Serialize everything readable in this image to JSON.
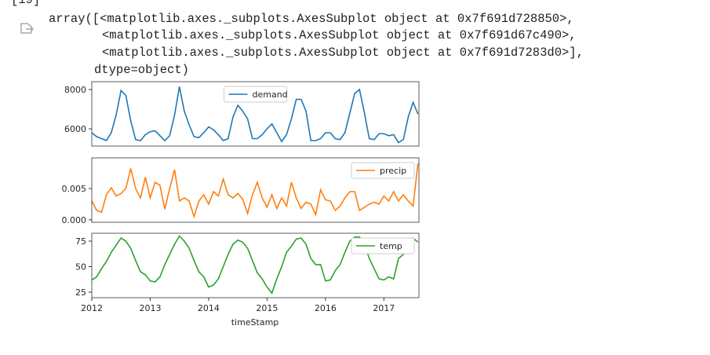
{
  "cell": {
    "prompt": "[19]",
    "output_lines": [
      "array([<matplotlib.axes._subplots.AxesSubplot object at 0x7f691d728850>,",
      "<matplotlib.axes._subplots.AxesSubplot object at 0x7f691d67c490>,",
      "<matplotlib.axes._subplots.AxesSubplot object at 0x7f691d7283d0>],",
      "dtype=object)"
    ]
  },
  "chart_data": {
    "type": "line",
    "xlabel": "timeStamp",
    "x": [
      2012,
      2012.083,
      2012.167,
      2012.25,
      2012.333,
      2012.417,
      2012.5,
      2012.583,
      2012.667,
      2012.75,
      2012.833,
      2012.917,
      2013,
      2013.083,
      2013.167,
      2013.25,
      2013.333,
      2013.417,
      2013.5,
      2013.583,
      2013.667,
      2013.75,
      2013.833,
      2013.917,
      2014,
      2014.083,
      2014.167,
      2014.25,
      2014.333,
      2014.417,
      2014.5,
      2014.583,
      2014.667,
      2014.75,
      2014.833,
      2014.917,
      2015,
      2015.083,
      2015.167,
      2015.25,
      2015.333,
      2015.417,
      2015.5,
      2015.583,
      2015.667,
      2015.75,
      2015.833,
      2015.917,
      2016,
      2016.083,
      2016.167,
      2016.25,
      2016.333,
      2016.417,
      2016.5,
      2016.583,
      2016.667,
      2016.75,
      2016.833,
      2016.917,
      2017,
      2017.083,
      2017.167,
      2017.25,
      2017.333,
      2017.417,
      2017.5,
      2017.583
    ],
    "xlim": [
      2012,
      2017.6
    ],
    "xticks": [
      2012,
      2013,
      2014,
      2015,
      2016,
      2017
    ],
    "series": [
      {
        "name": "demand",
        "color": "#1f77b4",
        "legend": "upper center",
        "ylim": [
          5120,
          8400
        ],
        "yticks": [
          6000,
          8000
        ],
        "values": [
          5800,
          5600,
          5500,
          5400,
          5800,
          6700,
          7950,
          7700,
          6400,
          5450,
          5400,
          5700,
          5850,
          5900,
          5650,
          5400,
          5650,
          6700,
          8150,
          6900,
          6200,
          5600,
          5550,
          5800,
          6100,
          5950,
          5700,
          5400,
          5500,
          6600,
          7200,
          6900,
          6500,
          5500,
          5500,
          5700,
          6000,
          6250,
          5800,
          5350,
          5700,
          6500,
          7500,
          7500,
          6900,
          5400,
          5400,
          5500,
          5800,
          5800,
          5500,
          5450,
          5800,
          6800,
          7800,
          8000,
          6800,
          5500,
          5450,
          5750,
          5750,
          5650,
          5700,
          5300,
          5450,
          6600,
          7350,
          6750
        ]
      },
      {
        "name": "precip",
        "color": "#ff7f0e",
        "legend": "upper right",
        "ylim": [
          -0.0004,
          0.0099
        ],
        "yticks": [
          {
            "value": 0,
            "label": "0.000"
          },
          {
            "value": 0.005,
            "label": "0.005"
          }
        ],
        "values": [
          0.003,
          0.0015,
          0.0012,
          0.004,
          0.0051,
          0.0038,
          0.0042,
          0.005,
          0.0082,
          0.005,
          0.0035,
          0.0068,
          0.0035,
          0.006,
          0.0055,
          0.0017,
          0.005,
          0.008,
          0.003,
          0.0035,
          0.003,
          0.0005,
          0.003,
          0.004,
          0.0025,
          0.0045,
          0.0038,
          0.0065,
          0.004,
          0.0035,
          0.0042,
          0.0033,
          0.001,
          0.004,
          0.006,
          0.0035,
          0.002,
          0.004,
          0.0018,
          0.0035,
          0.0022,
          0.006,
          0.0035,
          0.0018,
          0.0028,
          0.0025,
          0.0008,
          0.0048,
          0.0032,
          0.003,
          0.0015,
          0.0022,
          0.0035,
          0.0045,
          0.0045,
          0.0015,
          0.002,
          0.0025,
          0.0028,
          0.0025,
          0.0038,
          0.003,
          0.0045,
          0.003,
          0.004,
          0.003,
          0.0022,
          0.009
        ]
      },
      {
        "name": "temp",
        "color": "#2ca02c",
        "legend": "upper right",
        "ylim": [
          19.6,
          82.7
        ],
        "yticks": [
          25,
          50,
          75
        ],
        "values": [
          37,
          40,
          48,
          55,
          64,
          71,
          78,
          75,
          68,
          56,
          45,
          42,
          36,
          35,
          40,
          52,
          62,
          72,
          80,
          75,
          68,
          56,
          45,
          40,
          30,
          32,
          38,
          50,
          62,
          72,
          76,
          74,
          68,
          56,
          44,
          38,
          30,
          24,
          38,
          50,
          64,
          70,
          77,
          78,
          72,
          58,
          52,
          52,
          36,
          37,
          46,
          52,
          64,
          75,
          79,
          79,
          72,
          58,
          48,
          38,
          37,
          40,
          38,
          58,
          62,
          72,
          78,
          74
        ]
      }
    ]
  }
}
